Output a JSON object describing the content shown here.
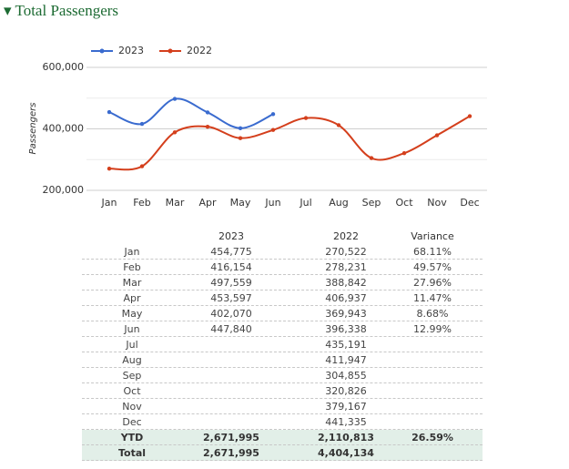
{
  "section_title": "Total Passengers",
  "chart_data": {
    "type": "line",
    "y_label": "Passengers",
    "categories": [
      "Jan",
      "Feb",
      "Mar",
      "Apr",
      "May",
      "Jun",
      "Jul",
      "Aug",
      "Sep",
      "Oct",
      "Nov",
      "Dec"
    ],
    "series": [
      {
        "name": "2023",
        "color": "#3a6bcf",
        "values": [
          454775,
          416154,
          497559,
          453597,
          402070,
          447840,
          null,
          null,
          null,
          null,
          null,
          null
        ]
      },
      {
        "name": "2022",
        "color": "#d43f1c",
        "values": [
          270522,
          278231,
          388842,
          406937,
          369943,
          396338,
          435191,
          411947,
          304855,
          320826,
          379167,
          441335
        ]
      }
    ],
    "ylim": [
      200000,
      600000
    ],
    "yticks": [
      {
        "value": 200000,
        "label": "200,000"
      },
      {
        "value": 400000,
        "label": "400,000"
      },
      {
        "value": 600000,
        "label": "600,000"
      }
    ],
    "minor_yticks": [
      300000,
      500000
    ],
    "grid": true,
    "legend": "top"
  },
  "table": {
    "columns": [
      "2023",
      "2022",
      "Variance"
    ],
    "rows": [
      {
        "label": "Jan",
        "cells": [
          "454,775",
          "270,522",
          "68.11%"
        ]
      },
      {
        "label": "Feb",
        "cells": [
          "416,154",
          "278,231",
          "49.57%"
        ]
      },
      {
        "label": "Mar",
        "cells": [
          "497,559",
          "388,842",
          "27.96%"
        ]
      },
      {
        "label": "Apr",
        "cells": [
          "453,597",
          "406,937",
          "11.47%"
        ]
      },
      {
        "label": "May",
        "cells": [
          "402,070",
          "369,943",
          "8.68%"
        ]
      },
      {
        "label": "Jun",
        "cells": [
          "447,840",
          "396,338",
          "12.99%"
        ]
      },
      {
        "label": "Jul",
        "cells": [
          null,
          "435,191",
          null
        ]
      },
      {
        "label": "Aug",
        "cells": [
          null,
          "411,947",
          null
        ]
      },
      {
        "label": "Sep",
        "cells": [
          null,
          "304,855",
          null
        ]
      },
      {
        "label": "Oct",
        "cells": [
          null,
          "320,826",
          null
        ]
      },
      {
        "label": "Nov",
        "cells": [
          null,
          "379,167",
          null
        ]
      },
      {
        "label": "Dec",
        "cells": [
          null,
          "441,335",
          null
        ]
      }
    ],
    "summary": [
      {
        "label": "YTD",
        "cells": [
          "2,671,995",
          "2,110,813",
          "26.59%"
        ]
      },
      {
        "label": "Total",
        "cells": [
          "2,671,995",
          "4,404,134",
          null
        ]
      }
    ]
  }
}
